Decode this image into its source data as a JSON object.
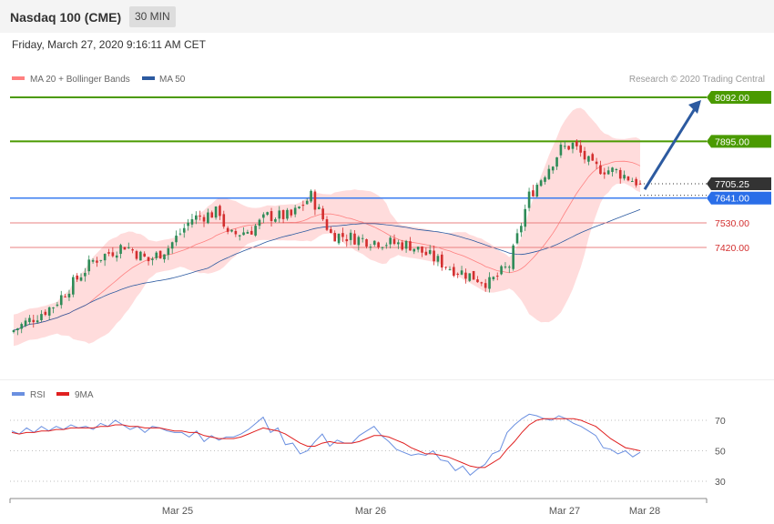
{
  "header": {
    "title": "Nasdaq 100 (CME)",
    "timeframe": "30 MIN",
    "datetime": "Friday, March 27, 2020 9:16:11 AM CET"
  },
  "legend": {
    "ma20_bb": "MA 20 + Bollinger Bands",
    "ma50": "MA 50",
    "copyright": "Research © 2020 Trading Central"
  },
  "rsi_legend": {
    "rsi": "RSI",
    "ma9": "9MA"
  },
  "colors": {
    "bull": "#2e8b57",
    "bear": "#d32f2f",
    "band": "#ffd0d0",
    "ma20": "#ff8080",
    "ma50": "#2c5aa0",
    "target": "#4a9a00",
    "pivot": "#3a7cf0",
    "support": "#e88080",
    "price": "#333333",
    "rsi": "#6a8fe0",
    "rsi_ma": "#e02020"
  },
  "chart_data": [
    {
      "type": "candlestick",
      "title": "Nasdaq 100 (CME)",
      "ylim": [
        6900,
        8300
      ],
      "x_ticks": [
        "Mar 25",
        "Mar 26",
        "Mar 27",
        "Mar 28"
      ],
      "levels": [
        {
          "value": "8092.00",
          "kind": "resistance"
        },
        {
          "value": "7895.00",
          "kind": "resistance"
        },
        {
          "value": "7705.25",
          "kind": "last"
        },
        {
          "value": "7641.00",
          "kind": "pivot"
        },
        {
          "value": "7530.00",
          "kind": "support"
        },
        {
          "value": "7420.00",
          "kind": "support"
        }
      ],
      "target_arrow": {
        "from": 7680,
        "to": 8080
      },
      "close_segments": [
        [
          0,
          7050
        ],
        [
          10,
          7160
        ],
        [
          20,
          7360
        ],
        [
          28,
          7430
        ],
        [
          34,
          7360
        ],
        [
          39,
          7420
        ],
        [
          45,
          7550
        ],
        [
          52,
          7580
        ],
        [
          54,
          7470
        ],
        [
          60,
          7500
        ],
        [
          64,
          7560
        ],
        [
          70,
          7560
        ],
        [
          75,
          7650
        ],
        [
          80,
          7480
        ],
        [
          90,
          7450
        ],
        [
          100,
          7430
        ],
        [
          110,
          7330
        ],
        [
          120,
          7260
        ],
        [
          125,
          7340
        ],
        [
          130,
          7650
        ],
        [
          138,
          7860
        ],
        [
          141,
          7880
        ],
        [
          146,
          7780
        ],
        [
          152,
          7760
        ],
        [
          158,
          7705.25
        ]
      ],
      "n_candles": 159,
      "indicators": [
        "MA 20 + Bollinger Bands",
        "MA 50"
      ]
    },
    {
      "type": "line",
      "title": "RSI",
      "ylim": [
        20,
        80
      ],
      "y_ticks": [
        "70",
        "50",
        "30"
      ],
      "series": [
        {
          "name": "RSI",
          "values": [
            63,
            61,
            65,
            62,
            66,
            63,
            66,
            64,
            67,
            65,
            66,
            64,
            68,
            66,
            70,
            67,
            64,
            66,
            62,
            66,
            65,
            63,
            62,
            62,
            59,
            63,
            56,
            60,
            57,
            59,
            59,
            61,
            64,
            68,
            72,
            62,
            65,
            54,
            55,
            48,
            50,
            56,
            61,
            53,
            57,
            55,
            55,
            60,
            63,
            66,
            60,
            56,
            51,
            49,
            47,
            48,
            47,
            50,
            44,
            43,
            37,
            40,
            34,
            38,
            41,
            48,
            50,
            62,
            67,
            71,
            74,
            73,
            71,
            70,
            73,
            71,
            68,
            66,
            63,
            60,
            52,
            51,
            48,
            50,
            46,
            49
          ]
        },
        {
          "name": "9MA",
          "values": [
            62,
            61,
            62,
            62,
            63,
            63,
            64,
            64,
            65,
            65,
            65,
            65,
            66,
            66,
            67,
            67,
            66,
            66,
            65,
            65,
            65,
            64,
            63,
            63,
            62,
            62,
            60,
            59,
            58,
            58,
            58,
            59,
            61,
            63,
            65,
            64,
            63,
            61,
            58,
            55,
            53,
            53,
            55,
            56,
            55,
            55,
            55,
            56,
            58,
            60,
            60,
            59,
            57,
            55,
            52,
            50,
            48,
            48,
            47,
            46,
            44,
            42,
            40,
            39,
            39,
            42,
            45,
            51,
            56,
            62,
            67,
            70,
            71,
            71,
            71,
            71,
            71,
            70,
            68,
            66,
            62,
            58,
            55,
            52,
            51,
            50
          ]
        }
      ]
    }
  ]
}
